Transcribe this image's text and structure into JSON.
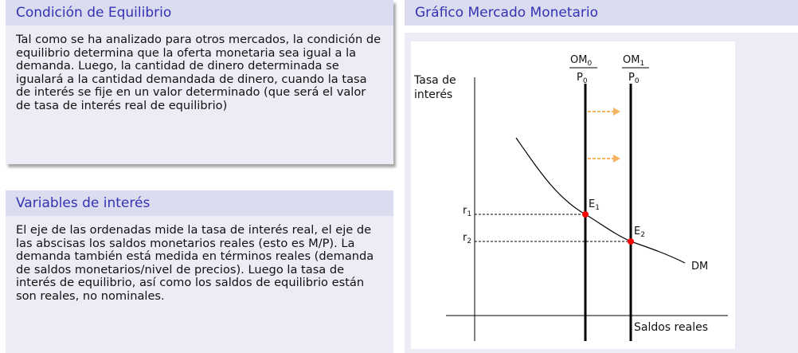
{
  "block1": {
    "title": "Condición de Equilibrio",
    "text": "Tal como se ha analizado para otros mercados, la condición de equilibrio determina que la oferta monetaria sea igual a la demanda. Luego, la cantidad de dinero determinada se igualará a la cantidad demandada de dinero, cuando la tasa de interés se fije en un valor determinado (que será el valor de tasa de interés real de equilibrio)"
  },
  "block2": {
    "title": "Variables de interés",
    "text": "El eje de las ordenadas mide la tasa de interés real, el eje de las abscisas los saldos monetarios reales (esto es M/P). La demanda también está medida en términos reales (demanda de saldos monetarios/nivel de precios). Luego la tasa de interés de equilibrio, así como los saldos de equilibrio están son reales, no nominales."
  },
  "block3": {
    "title": "Gráfico Mercado Monetario"
  },
  "diagram": {
    "y_axis_label_line1": "Tasa de",
    "y_axis_label_line2": "interés",
    "x_axis_label": "Saldos reales",
    "om0_num": "OM",
    "om0_sub": "0",
    "om0_den": "P",
    "om0_den_sub": "0",
    "om1_num": "OM",
    "om1_sub": "1",
    "om1_den": "P",
    "om1_den_sub": "0",
    "r1": "r",
    "r1_sub": "1",
    "r2": "r",
    "r2_sub": "2",
    "e1": "E",
    "e1_sub": "1",
    "e2": "E",
    "e2_sub": "2",
    "demand_label": "DM",
    "colors": {
      "arrow": "#f4b460",
      "point": "#ff0000",
      "line": "#000000"
    }
  }
}
